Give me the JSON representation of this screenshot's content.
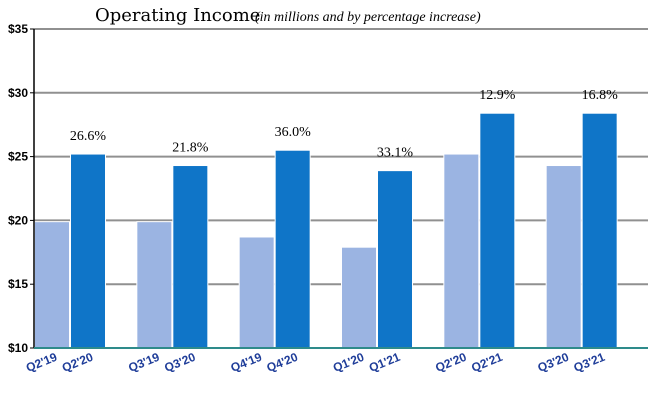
{
  "chart_data": {
    "type": "bar",
    "title": "Operating Income",
    "subtitle": "(in millions and by percentage increase)",
    "xlabel": "",
    "ylabel": "",
    "ylim": [
      10,
      35
    ],
    "y_tick_values": [
      10,
      15,
      20,
      25,
      30,
      35
    ],
    "y_tick_labels": [
      "$10",
      "$15",
      "$20",
      "$25",
      "$30",
      "$35"
    ],
    "grid": true,
    "colors": {
      "prior_year": "#9BB4E2",
      "current_year": "#0F75C8",
      "tick_label": "#1F3D99",
      "grid": "#909090",
      "axis": "#000000",
      "baseline": "#2E8B8B"
    },
    "groups": [
      {
        "labels": [
          "Q2'19",
          "Q2'20"
        ],
        "values": [
          19.9,
          25.2
        ],
        "increase": "26.6%"
      },
      {
        "labels": [
          "Q3'19",
          "Q3'20"
        ],
        "values": [
          19.9,
          24.3
        ],
        "increase": "21.8%"
      },
      {
        "labels": [
          "Q4'19",
          "Q4'20"
        ],
        "values": [
          18.7,
          25.5
        ],
        "increase": "36.0%"
      },
      {
        "labels": [
          "Q1'20",
          "Q1'21"
        ],
        "values": [
          17.9,
          23.9
        ],
        "increase": "33.1%"
      },
      {
        "labels": [
          "Q2'20",
          "Q2'21"
        ],
        "values": [
          25.2,
          28.4
        ],
        "increase": "12.9%"
      },
      {
        "labels": [
          "Q3'20",
          "Q3'21"
        ],
        "values": [
          24.3,
          28.4
        ],
        "increase": "16.8%"
      }
    ]
  }
}
